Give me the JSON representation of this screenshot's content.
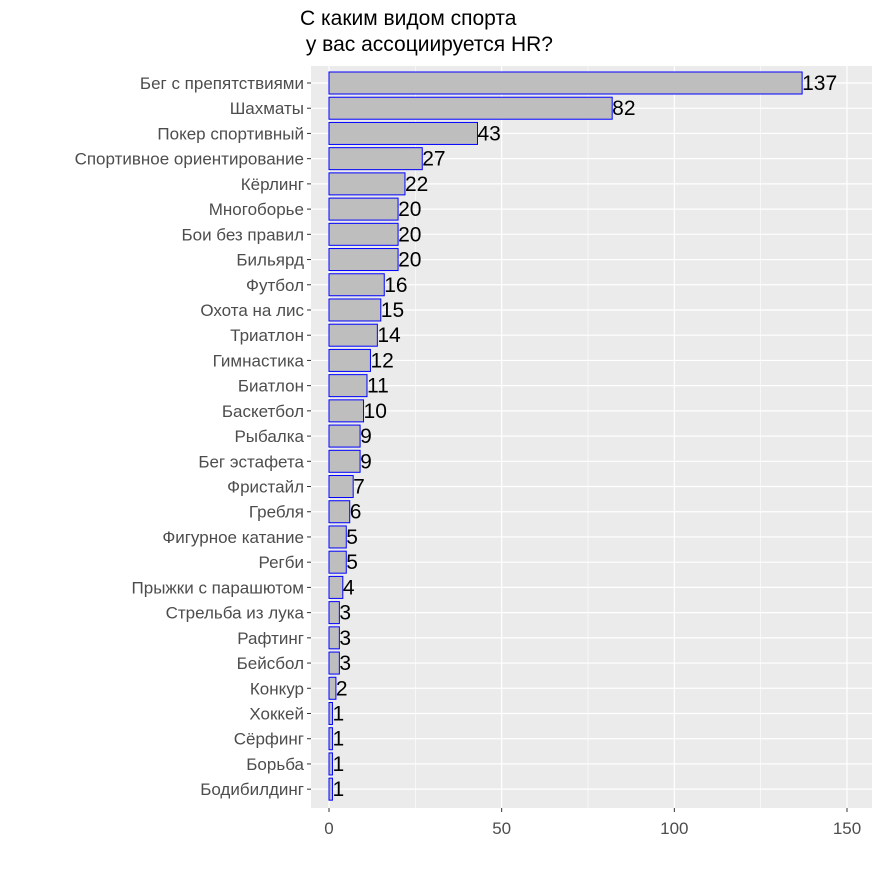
{
  "chart_data": {
    "type": "bar",
    "orientation": "horizontal",
    "title": "С каким видом спорта\n у вас ассоциируется HR?",
    "xlabel": "",
    "ylabel": "",
    "xlim": [
      0,
      150
    ],
    "xticks": [
      0,
      50,
      100,
      150
    ],
    "grid": true,
    "categories": [
      "Бег с препятствиями",
      "Шахматы",
      "Покер спортивный",
      "Спортивное ориентирование",
      "Кёрлинг",
      "Многоборье",
      "Бои без правил",
      "Бильярд",
      "Футбол",
      "Охота на лис",
      "Триатлон",
      "Гимнастика",
      "Биатлон",
      "Баскетбол",
      "Рыбалка",
      "Бег эстафета",
      "Фристайл",
      "Гребля",
      "Фигурное катание",
      "Регби",
      "Прыжки с парашютом",
      "Стрельба из лука",
      "Рафтинг",
      "Бейсбол",
      "Конкур",
      "Хоккей",
      "Сёрфинг",
      "Борьба",
      "Бодибилдинг"
    ],
    "values": [
      137,
      82,
      43,
      27,
      22,
      20,
      20,
      20,
      16,
      15,
      14,
      12,
      11,
      10,
      9,
      9,
      7,
      6,
      5,
      5,
      4,
      3,
      3,
      3,
      2,
      1,
      1,
      1,
      1
    ],
    "colors": {
      "panel_background": "#ebebeb",
      "grid": "#ffffff",
      "bar_fill": "#bebebe",
      "bar_stroke": "#0000ff",
      "tick_text": "#4d4d4d",
      "label_text": "#000000"
    }
  }
}
